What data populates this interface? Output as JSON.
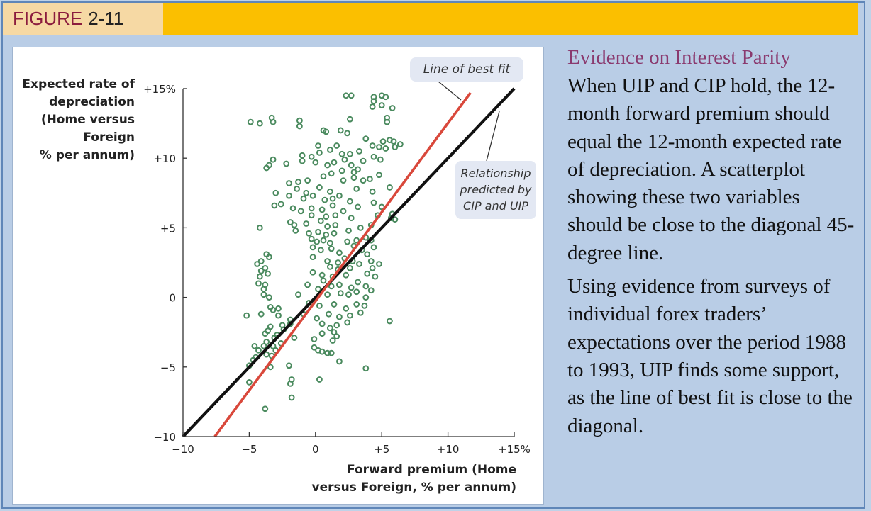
{
  "figure": {
    "label_word": "FIGURE",
    "label_number": "2-11"
  },
  "sidebar": {
    "title": "Evidence on Interest Parity",
    "paragraphs": [
      "When UIP and CIP hold, the 12-month forward premium should equal the 12-month expected rate of depreciation. A scatterplot showing these two variables should be close to the diagonal 45-degree line.",
      "Using evidence from surveys of individual forex traders’ expectations over the period 1988 to 1993, UIP finds some support, as the line of best fit is close to the diagonal."
    ]
  },
  "chart_data": {
    "type": "scatter",
    "title": "",
    "ylabel_lines": [
      "Expected rate of",
      "depreciation",
      "(Home versus",
      "Foreign",
      "% per annum)"
    ],
    "xlabel_lines": [
      "Forward premium (Home",
      "versus Foreign, % per annum)"
    ],
    "xlim": [
      -10,
      15
    ],
    "ylim": [
      -10,
      15
    ],
    "xticks": [
      -10,
      -5,
      0,
      5,
      10,
      15
    ],
    "yticks": [
      -10,
      -5,
      0,
      5,
      10,
      15
    ],
    "xtick_labels": [
      "−10",
      "−5",
      "0",
      "+5",
      "+10",
      "+15%"
    ],
    "ytick_labels": [
      "−10",
      "−5",
      "0",
      "+5",
      "+10",
      "+15%"
    ],
    "grid": false,
    "annotations": {
      "best_fit": "Line of best fit",
      "cip_uip": [
        "Relationship",
        "predicted by",
        "CIP and UIP"
      ]
    },
    "colors": {
      "points": "#4a8a5e",
      "best_fit": "#d9483b",
      "diagonal": "#111111"
    },
    "lines": [
      {
        "label": "Line of best fit",
        "x": [
          -7.6,
          11.7
        ],
        "y": [
          -10,
          14.7
        ]
      },
      {
        "label": "Relationship predicted by CIP and UIP",
        "x": [
          -10,
          15
        ],
        "y": [
          -10,
          15
        ]
      }
    ],
    "points": [
      [
        -4.9,
        12.6
      ],
      [
        -4.2,
        12.5
      ],
      [
        -3.3,
        12.9
      ],
      [
        -3.2,
        12.6
      ],
      [
        -1.2,
        12.7
      ],
      [
        -1.2,
        12.3
      ],
      [
        0.6,
        12
      ],
      [
        0.8,
        11.9
      ],
      [
        2.3,
        14.5
      ],
      [
        2.7,
        14.5
      ],
      [
        4.4,
        14.4
      ],
      [
        5.0,
        14.5
      ],
      [
        5.3,
        14.4
      ],
      [
        4.4,
        14.1
      ],
      [
        4.3,
        13.7
      ],
      [
        5.0,
        13.8
      ],
      [
        5.8,
        13.6
      ],
      [
        5.4,
        12.9
      ],
      [
        5.4,
        12.6
      ],
      [
        2.6,
        12.8
      ],
      [
        1.9,
        12.0
      ],
      [
        2.4,
        11.8
      ],
      [
        3.8,
        11.4
      ],
      [
        5.1,
        11.2
      ],
      [
        5.6,
        11.3
      ],
      [
        5.9,
        11.2
      ],
      [
        6.4,
        11.0
      ],
      [
        6.0,
        10.8
      ],
      [
        5.3,
        10.7
      ],
      [
        4.3,
        10.9
      ],
      [
        4.8,
        10.8
      ],
      [
        0.2,
        10.9
      ],
      [
        0.3,
        10.4
      ],
      [
        -1.0,
        10.2
      ],
      [
        -0.3,
        10.1
      ],
      [
        1.1,
        10.6
      ],
      [
        1.6,
        10.9
      ],
      [
        2.0,
        10.3
      ],
      [
        2.6,
        10.3
      ],
      [
        3.3,
        10.5
      ],
      [
        -3.5,
        9.5
      ],
      [
        -3.2,
        9.9
      ],
      [
        -3.7,
        9.3
      ],
      [
        -2.2,
        9.6
      ],
      [
        -1.0,
        9.8
      ],
      [
        0.0,
        9.7
      ],
      [
        0.9,
        9.5
      ],
      [
        1.4,
        9.7
      ],
      [
        2.2,
        9.9
      ],
      [
        2.7,
        9.5
      ],
      [
        3.6,
        9.8
      ],
      [
        4.4,
        10.1
      ],
      [
        4.9,
        9.9
      ],
      [
        3.2,
        9.2
      ],
      [
        2.0,
        9.1
      ],
      [
        1.2,
        8.9
      ],
      [
        0.6,
        8.7
      ],
      [
        -0.6,
        8.4
      ],
      [
        -1.3,
        8.3
      ],
      [
        -2.0,
        8.2
      ],
      [
        2.1,
        8.4
      ],
      [
        2.9,
        8.6
      ],
      [
        3.6,
        8.4
      ],
      [
        4.1,
        8.5
      ],
      [
        4.8,
        8.8
      ],
      [
        -1.4,
        7.8
      ],
      [
        -0.7,
        7.5
      ],
      [
        0.3,
        7.9
      ],
      [
        1.1,
        7.6
      ],
      [
        1.8,
        7.3
      ],
      [
        3.1,
        7.8
      ],
      [
        4.3,
        7.6
      ],
      [
        5.6,
        7.9
      ],
      [
        -3.0,
        7.5
      ],
      [
        -2.0,
        7.3
      ],
      [
        -0.9,
        7.1
      ],
      [
        0.7,
        7.0
      ],
      [
        2.6,
        6.9
      ],
      [
        -3.1,
        6.6
      ],
      [
        -2.6,
        6.7
      ],
      [
        -1.7,
        6.4
      ],
      [
        -1.1,
        6.2
      ],
      [
        -0.3,
        6.4
      ],
      [
        0.5,
        6.3
      ],
      [
        1.3,
        6.6
      ],
      [
        2.1,
        6.2
      ],
      [
        3.2,
        6.5
      ],
      [
        4.4,
        6.8
      ],
      [
        5.0,
        6.5
      ],
      [
        -0.3,
        5.9
      ],
      [
        0.8,
        5.8
      ],
      [
        1.5,
        5.9
      ],
      [
        2.7,
        5.7
      ],
      [
        4.7,
        5.9
      ],
      [
        5.8,
        6.0
      ],
      [
        -1.9,
        5.4
      ],
      [
        -1.6,
        5.2
      ],
      [
        -0.7,
        5.3
      ],
      [
        0.4,
        5.5
      ],
      [
        0.9,
        5.1
      ],
      [
        1.5,
        5.2
      ],
      [
        4.2,
        5.2
      ],
      [
        5.7,
        5.7
      ],
      [
        6.0,
        5.6
      ],
      [
        -4.2,
        5.0
      ],
      [
        -1.5,
        4.8
      ],
      [
        -0.5,
        4.6
      ],
      [
        0.2,
        4.7
      ],
      [
        0.8,
        4.5
      ],
      [
        1.4,
        4.6
      ],
      [
        -0.3,
        4.2
      ],
      [
        0.1,
        4.0
      ],
      [
        0.6,
        4.1
      ],
      [
        1.1,
        3.9
      ],
      [
        2.4,
        4.0
      ],
      [
        3.1,
        4.1
      ],
      [
        3.8,
        4.3
      ],
      [
        4.2,
        4.1
      ],
      [
        -0.2,
        3.6
      ],
      [
        0.4,
        3.4
      ],
      [
        1.2,
        3.5
      ],
      [
        1.8,
        3.2
      ],
      [
        2.9,
        3.7
      ],
      [
        3.5,
        3.4
      ],
      [
        3.9,
        3.1
      ],
      [
        4.4,
        3.6
      ],
      [
        -3.7,
        3.1
      ],
      [
        -3.5,
        2.9
      ],
      [
        -0.2,
        2.9
      ],
      [
        0.9,
        2.6
      ],
      [
        1.7,
        2.5
      ],
      [
        2.2,
        2.8
      ],
      [
        2.8,
        2.6
      ],
      [
        3.3,
        2.4
      ],
      [
        4.2,
        2.6
      ],
      [
        4.8,
        2.4
      ],
      [
        -4.4,
        2.4
      ],
      [
        -3.8,
        2.1
      ],
      [
        -4.1,
        1.9
      ],
      [
        1.1,
        2.2
      ],
      [
        1.7,
        2.0
      ],
      [
        2.6,
        2.1
      ],
      [
        4.3,
        2.1
      ],
      [
        -3.6,
        1.7
      ],
      [
        -4.2,
        1.5
      ],
      [
        -0.2,
        1.8
      ],
      [
        0.5,
        1.6
      ],
      [
        1.3,
        1.5
      ],
      [
        2.3,
        1.6
      ],
      [
        3.9,
        1.7
      ],
      [
        4.5,
        1.5
      ],
      [
        -4.3,
        1.0
      ],
      [
        -3.8,
        0.9
      ],
      [
        -3.9,
        0.6
      ],
      [
        -0.6,
        0.9
      ],
      [
        0.6,
        1.2
      ],
      [
        1.2,
        0.8
      ],
      [
        1.8,
        0.9
      ],
      [
        2.7,
        0.7
      ],
      [
        3.2,
        1.1
      ],
      [
        3.8,
        0.8
      ],
      [
        4.2,
        0.5
      ],
      [
        -3.9,
        0.2
      ],
      [
        -3.5,
        0.0
      ],
      [
        -1.3,
        0.2
      ],
      [
        1.9,
        0.3
      ],
      [
        2.5,
        0.2
      ],
      [
        3.1,
        0.4
      ],
      [
        3.8,
        0.0
      ],
      [
        -3.4,
        -0.7
      ],
      [
        -3.2,
        -0.9
      ],
      [
        -2.8,
        -0.8
      ],
      [
        -0.5,
        -0.4
      ],
      [
        0.3,
        -0.6
      ],
      [
        1.4,
        -0.5
      ],
      [
        2.3,
        -0.8
      ],
      [
        3.1,
        -0.5
      ],
      [
        3.7,
        -0.6
      ],
      [
        -5.2,
        -1.3
      ],
      [
        -4.1,
        -1.2
      ],
      [
        -2.8,
        -1.3
      ],
      [
        -1.9,
        -1.6
      ],
      [
        -0.9,
        -1.2
      ],
      [
        0.1,
        -1.5
      ],
      [
        1.0,
        -1.2
      ],
      [
        1.8,
        -1.4
      ],
      [
        2.6,
        -1.3
      ],
      [
        3.4,
        -1.1
      ],
      [
        5.6,
        -1.7
      ],
      [
        -3.4,
        -2.1
      ],
      [
        -3.6,
        -2.4
      ],
      [
        -2.5,
        -2.0
      ],
      [
        -1.9,
        -1.9
      ],
      [
        0.5,
        -1.9
      ],
      [
        1.1,
        -2.2
      ],
      [
        1.6,
        -2.0
      ],
      [
        2.4,
        -1.8
      ],
      [
        -3.8,
        -2.6
      ],
      [
        -3.1,
        -2.9
      ],
      [
        -2.9,
        -2.7
      ],
      [
        -1.6,
        -2.9
      ],
      [
        0.5,
        -2.6
      ],
      [
        1.4,
        -2.5
      ],
      [
        1.6,
        -2.8
      ],
      [
        -3.7,
        -3.2
      ],
      [
        -3.2,
        -3.5
      ],
      [
        -2.6,
        -3.3
      ],
      [
        -0.1,
        -3.0
      ],
      [
        1.3,
        -3.1
      ],
      [
        -4.6,
        -3.5
      ],
      [
        -4.3,
        -3.8
      ],
      [
        -3.9,
        -3.5
      ],
      [
        -3.7,
        -4.1
      ],
      [
        -3.0,
        -3.8
      ],
      [
        -0.1,
        -3.6
      ],
      [
        0.5,
        -3.9
      ],
      [
        0.9,
        -4.0
      ],
      [
        1.2,
        -4.0
      ],
      [
        -4.5,
        -4.3
      ],
      [
        -4.7,
        -4.5
      ],
      [
        -3.3,
        -4.2
      ],
      [
        -3.4,
        -5.0
      ],
      [
        -2.0,
        -4.9
      ],
      [
        0.2,
        -3.8
      ],
      [
        1.8,
        -4.6
      ],
      [
        3.8,
        -5.1
      ],
      [
        -5.0,
        -6.1
      ],
      [
        -1.8,
        -5.9
      ],
      [
        -1.9,
        -6.2
      ],
      [
        0.3,
        -5.9
      ],
      [
        -1.8,
        -7.2
      ],
      [
        -3.8,
        -8.0
      ],
      [
        -5.0,
        -4.9
      ],
      [
        -2.4,
        -2.3
      ],
      [
        0.2,
        0.6
      ],
      [
        0.9,
        0.2
      ],
      [
        -4.1,
        2.6
      ],
      [
        2.5,
        4.8
      ],
      [
        2.9,
        9.0
      ],
      [
        1.3,
        7.1
      ],
      [
        -0.2,
        7.3
      ],
      [
        3.4,
        5.0
      ]
    ]
  }
}
